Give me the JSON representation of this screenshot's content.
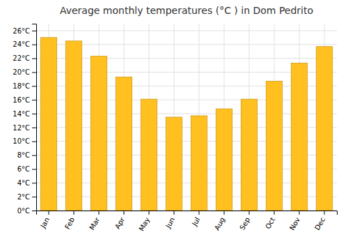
{
  "chart_data": {
    "type": "bar",
    "title": "Average monthly temperatures (°C ) in Dom Pedrito",
    "categories": [
      "Jan",
      "Feb",
      "Mar",
      "Apr",
      "May",
      "Jun",
      "Jul",
      "Aug",
      "Sep",
      "Oct",
      "Nov",
      "Dec"
    ],
    "values": [
      25.0,
      24.5,
      22.3,
      19.3,
      16.1,
      13.5,
      13.7,
      14.7,
      16.1,
      18.7,
      21.3,
      23.7
    ],
    "color": "#FFC020",
    "ylim": [
      0,
      27
    ],
    "yticks": [
      {
        "value": 0,
        "label": "0°C"
      },
      {
        "value": 2,
        "label": "2°C"
      },
      {
        "value": 4,
        "label": "4°C"
      },
      {
        "value": 6,
        "label": "6°C"
      },
      {
        "value": 8,
        "label": "8°C"
      },
      {
        "value": 10,
        "label": "10°C"
      },
      {
        "value": 12,
        "label": "12°C"
      },
      {
        "value": 14,
        "label": "14°C"
      },
      {
        "value": 16,
        "label": "16°C"
      },
      {
        "value": 18,
        "label": "18°C"
      },
      {
        "value": 20,
        "label": "20°C"
      },
      {
        "value": 22,
        "label": "22°C"
      },
      {
        "value": 24,
        "label": "24°C"
      },
      {
        "value": 26,
        "label": "26°C"
      }
    ],
    "grid": true
  }
}
